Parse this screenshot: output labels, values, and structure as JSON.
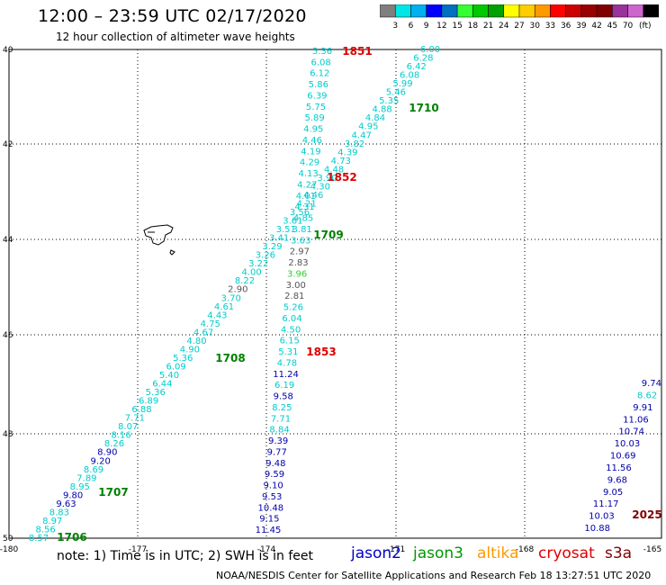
{
  "title": "12:00 – 23:59 UTC 02/17/2020",
  "subtitle": "12 hour collection of altimeter wave heights",
  "color_scale": {
    "swatches": [
      "#7f7f7f",
      "#00e6e6",
      "#00b0f0",
      "#0000ff",
      "#0070c0",
      "#33ff33",
      "#00c800",
      "#00a000",
      "#ffff00",
      "#ffcc00",
      "#ff9900",
      "#ff0000",
      "#cc0000",
      "#990000",
      "#800000",
      "#993399",
      "#cc66cc",
      "#000000"
    ],
    "labels": [
      "3",
      "6",
      "9",
      "12",
      "15",
      "18",
      "21",
      "24",
      "27",
      "30",
      "33",
      "36",
      "39",
      "42",
      "45",
      "70",
      "(ft)"
    ]
  },
  "axes": {
    "x_ticks": [
      "-180",
      "-177",
      "-174",
      "-171",
      "-168",
      "-165"
    ],
    "y_ticks": [
      "40",
      "42",
      "44",
      "46",
      "48",
      "50"
    ]
  },
  "track_colors": {
    "cyan": "#00cccc",
    "blue": "#0000aa",
    "gray": "#555555",
    "green": "#33cc33",
    "dark_green": "#008000",
    "red": "#dd0000"
  },
  "tracks": {
    "ascending_1": {
      "values": [
        "8.57",
        "8.56",
        "8.97",
        "8.83",
        "9.63",
        "9.80",
        "8.95",
        "7.89",
        "8.69",
        "9.20",
        "8.90",
        "8.26",
        "8.16",
        "8.07",
        "7.71",
        "6.88",
        "6.89",
        "5.36",
        "6.44",
        "5.40",
        "6.09",
        "5.36",
        "4.90",
        "4.80",
        "4.67",
        "4.75",
        "4.43",
        "4.61",
        "3.70",
        "2.90",
        "8.22",
        "4.00",
        "3.22",
        "3.26",
        "3.29",
        "3.41",
        "3.51",
        "3.61",
        "3.56",
        "4.21",
        "4.46",
        "4.30",
        "3.90",
        "4.48",
        "4.73",
        "4.39",
        "3.82",
        "4.47",
        "4.95",
        "4.84",
        "4.88",
        "5.35",
        "5.46",
        "5.99",
        "6.08",
        "6.42",
        "6.28",
        "6.00"
      ],
      "colors": [
        "cyan",
        "cyan",
        "cyan",
        "cyan",
        "blue",
        "blue",
        "cyan",
        "cyan",
        "cyan",
        "blue",
        "blue",
        "cyan",
        "cyan",
        "cyan",
        "cyan",
        "cyan",
        "cyan",
        "cyan",
        "cyan",
        "cyan",
        "cyan",
        "cyan",
        "cyan",
        "cyan",
        "cyan",
        "cyan",
        "cyan",
        "cyan",
        "cyan",
        "gray",
        "cyan",
        "cyan",
        "cyan",
        "cyan",
        "cyan",
        "cyan",
        "cyan",
        "cyan",
        "cyan",
        "cyan",
        "cyan",
        "cyan",
        "cyan",
        "cyan",
        "cyan",
        "cyan",
        "cyan",
        "cyan",
        "cyan",
        "cyan",
        "cyan",
        "cyan",
        "cyan",
        "cyan",
        "cyan",
        "cyan",
        "cyan",
        "cyan"
      ]
    },
    "descending_1": {
      "values": [
        "5.36",
        "6.08",
        "6.12",
        "5.86",
        "6.39",
        "5.75",
        "5.89",
        "4.95",
        "4.46",
        "4.19",
        "4.29",
        "4.13",
        "4.27",
        "4.01",
        "4.31",
        "4.85",
        "3.81",
        "3.63",
        "2.97",
        "2.83",
        "3.96",
        "3.00",
        "2.81",
        "5.26",
        "6.04",
        "4.50",
        "6.15",
        "5.31",
        "4.78",
        "11.24",
        "6.19",
        "9.58",
        "8.25",
        "7.71",
        "8.84",
        "9.39",
        "9.77",
        "9.48",
        "9.59",
        "9.10",
        "9.53",
        "10.48",
        "9.15",
        "11.45"
      ],
      "colors": [
        "cyan",
        "cyan",
        "cyan",
        "cyan",
        "cyan",
        "cyan",
        "cyan",
        "cyan",
        "cyan",
        "cyan",
        "cyan",
        "cyan",
        "cyan",
        "cyan",
        "cyan",
        "cyan",
        "cyan",
        "cyan",
        "gray",
        "gray",
        "green",
        "gray",
        "gray",
        "cyan",
        "cyan",
        "cyan",
        "cyan",
        "cyan",
        "cyan",
        "blue",
        "cyan",
        "blue",
        "cyan",
        "cyan",
        "cyan",
        "blue",
        "blue",
        "blue",
        "blue",
        "blue",
        "blue",
        "blue",
        "blue",
        "blue"
      ]
    },
    "descending_2": {
      "values": [
        "9.74",
        "8.62",
        "9.91",
        "11.06",
        "10.74",
        "10.03",
        "10.69",
        "11.56",
        "9.68",
        "9.05",
        "11.17",
        "10.03",
        "10.88"
      ],
      "colors": [
        "blue",
        "cyan",
        "blue",
        "blue",
        "blue",
        "blue",
        "blue",
        "blue",
        "blue",
        "blue",
        "blue",
        "blue",
        "blue"
      ]
    }
  },
  "time_labels": [
    {
      "text": "1851",
      "color": "red"
    },
    {
      "text": "1710",
      "color": "dark_green"
    },
    {
      "text": "1852",
      "color": "red"
    },
    {
      "text": "1709",
      "color": "dark_green"
    },
    {
      "text": "1853",
      "color": "red"
    },
    {
      "text": "1708",
      "color": "dark_green"
    },
    {
      "text": "1707",
      "color": "dark_green"
    },
    {
      "text": "1706",
      "color": "dark_green"
    },
    {
      "text": "2025",
      "color": "#800000"
    }
  ],
  "note": "note:  1) Time is in UTC;  2) SWH is in feet",
  "satellites": [
    {
      "name": "jason2",
      "color": "#0000cc"
    },
    {
      "name": "jason3",
      "color": "#009900"
    },
    {
      "name": "altika",
      "color": "#ff9900"
    },
    {
      "name": "cryosat",
      "color": "#dd0000"
    },
    {
      "name": "s3a",
      "color": "#800000"
    }
  ],
  "credit": "NOAA/NESDIS Center for Satellite Applications and Research    Feb 18 13:27:51 UTC 2020"
}
